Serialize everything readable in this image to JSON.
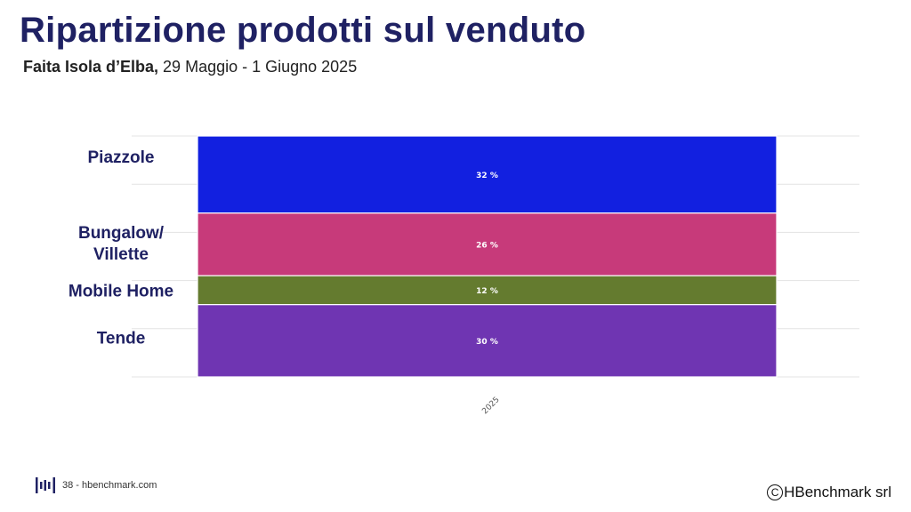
{
  "header": {
    "title": "Ripartizione prodotti sul venduto",
    "subtitle_bold": "Faita Isola d’Elba,",
    "subtitle_rest": " 29 Maggio - 1 Giugno 2025"
  },
  "chart_data": {
    "type": "bar",
    "stacked": true,
    "categories": [
      "2025"
    ],
    "series": [
      {
        "name": "Piazzole",
        "values": [
          32
        ],
        "label": "32 %",
        "color": "#1220e0"
      },
      {
        "name": "Bungalow/ Villette",
        "values": [
          26
        ],
        "label": "26 %",
        "color": "#c73a7a"
      },
      {
        "name": "Mobile Home",
        "values": [
          12
        ],
        "label": "12 %",
        "color": "#647b2f"
      },
      {
        "name": "Tende",
        "values": [
          30
        ],
        "label": "30 %",
        "color": "#6f35b2"
      }
    ],
    "ylim": [
      0,
      100
    ],
    "grid": true,
    "legend": "left"
  },
  "footer": {
    "page_text": "38 - hbenchmark.com",
    "logo_icon": "hbenchmark-logo-icon",
    "copyright_icon": "copyright-icon",
    "copyright_symbol": "C",
    "copyright_text": "HBenchmark srl"
  }
}
